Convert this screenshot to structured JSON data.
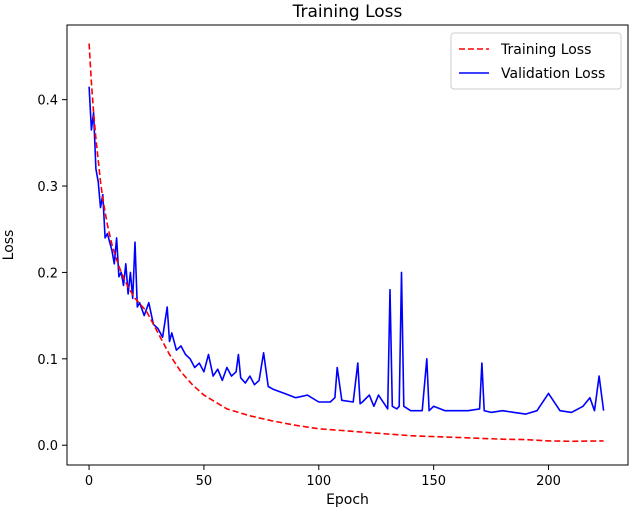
{
  "chart_data": {
    "type": "line",
    "title": "Training Loss",
    "xlabel": "Epoch",
    "ylabel": "Loss",
    "xlim": [
      -9.6,
      234.6
    ],
    "ylim": [
      -0.0229,
      0.4864
    ],
    "xticks": [
      0,
      50,
      100,
      150,
      200
    ],
    "xtick_labels": [
      "0",
      "50",
      "100",
      "150",
      "200"
    ],
    "yticks": [
      0.0,
      0.1,
      0.2,
      0.3,
      0.4
    ],
    "ytick_labels": [
      "0.0",
      "0.1",
      "0.2",
      "0.3",
      "0.4"
    ],
    "grid": false,
    "legend_position": "upper-right",
    "series": [
      {
        "name": "Training Loss",
        "color": "#ff0000",
        "line_style": "dashed",
        "x": [
          0,
          1,
          2,
          3,
          4,
          5,
          6,
          8,
          10,
          12,
          14,
          17,
          20,
          25,
          30,
          35,
          40,
          45,
          50,
          55,
          60,
          70,
          80,
          90,
          100,
          110,
          120,
          130,
          140,
          150,
          160,
          170,
          180,
          190,
          200,
          210,
          224
        ],
        "values": [
          0.465,
          0.42,
          0.385,
          0.355,
          0.33,
          0.305,
          0.285,
          0.255,
          0.232,
          0.215,
          0.2,
          0.183,
          0.17,
          0.155,
          0.13,
          0.105,
          0.085,
          0.07,
          0.058,
          0.05,
          0.042,
          0.034,
          0.028,
          0.023,
          0.019,
          0.017,
          0.015,
          0.013,
          0.011,
          0.01,
          0.009,
          0.008,
          0.007,
          0.0065,
          0.005,
          0.0045,
          0.005
        ]
      },
      {
        "name": "Validation Loss",
        "color": "#0000ff",
        "line_style": "solid",
        "x": [
          0,
          1,
          2,
          3,
          4,
          5,
          6,
          7,
          8,
          9,
          10,
          11,
          12,
          13,
          14,
          15,
          16,
          17,
          18,
          19,
          20,
          21,
          22,
          24,
          26,
          28,
          30,
          32,
          34,
          35,
          36,
          38,
          40,
          42,
          44,
          46,
          48,
          50,
          52,
          54,
          56,
          58,
          60,
          62,
          64,
          65,
          66,
          68,
          70,
          72,
          74,
          76,
          78,
          80,
          85,
          90,
          95,
          100,
          105,
          107,
          108,
          110,
          115,
          117,
          118,
          119,
          122,
          124,
          126,
          130,
          131,
          132,
          134,
          135,
          136,
          137,
          140,
          145,
          147,
          148,
          150,
          155,
          160,
          165,
          170,
          171,
          172,
          175,
          180,
          185,
          190,
          195,
          200,
          205,
          210,
          215,
          218,
          220,
          222,
          224
        ],
        "values": [
          0.415,
          0.365,
          0.385,
          0.32,
          0.305,
          0.275,
          0.29,
          0.24,
          0.245,
          0.235,
          0.225,
          0.21,
          0.24,
          0.195,
          0.2,
          0.185,
          0.21,
          0.175,
          0.2,
          0.17,
          0.235,
          0.16,
          0.165,
          0.15,
          0.165,
          0.14,
          0.135,
          0.125,
          0.16,
          0.12,
          0.13,
          0.11,
          0.115,
          0.105,
          0.1,
          0.09,
          0.095,
          0.085,
          0.105,
          0.08,
          0.088,
          0.075,
          0.09,
          0.08,
          0.085,
          0.105,
          0.078,
          0.072,
          0.08,
          0.07,
          0.075,
          0.107,
          0.068,
          0.065,
          0.06,
          0.055,
          0.058,
          0.05,
          0.05,
          0.055,
          0.09,
          0.052,
          0.05,
          0.095,
          0.048,
          0.05,
          0.058,
          0.045,
          0.058,
          0.042,
          0.18,
          0.045,
          0.042,
          0.045,
          0.2,
          0.045,
          0.04,
          0.04,
          0.1,
          0.04,
          0.045,
          0.04,
          0.04,
          0.04,
          0.042,
          0.095,
          0.04,
          0.038,
          0.04,
          0.038,
          0.036,
          0.04,
          0.06,
          0.04,
          0.038,
          0.045,
          0.055,
          0.04,
          0.08,
          0.04
        ]
      }
    ]
  }
}
